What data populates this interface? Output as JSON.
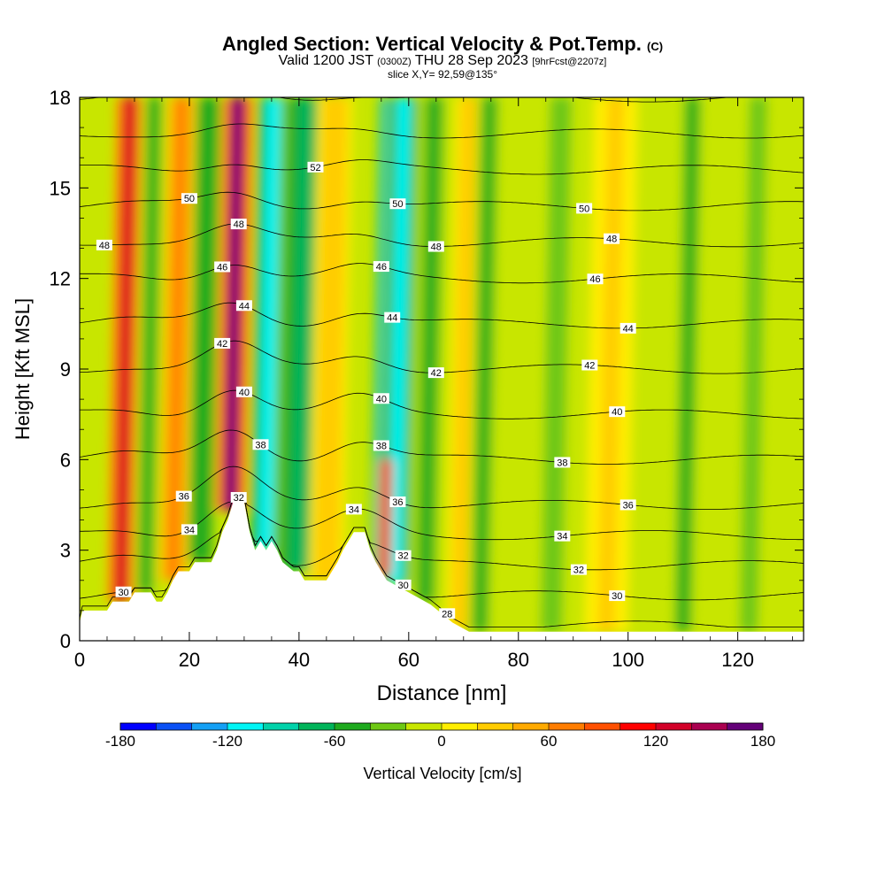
{
  "chart_data": {
    "type": "heatmap",
    "title": "Angled Section: Vertical Velocity & Pot.Temp.",
    "title_tag": "(C)",
    "subtitle": {
      "valid": "Valid 1200 JST",
      "utc": "(0300Z)",
      "date": "THU 28 Sep 2023",
      "fcst": "[9hrFcst@2207z]"
    },
    "slice": "slice X,Y= 92,59@135°",
    "xlabel": "Distance [nm]",
    "ylabel": "Height [Kft MSL]",
    "xlim": [
      0,
      132
    ],
    "ylim": [
      0,
      18
    ],
    "xticks": [
      "0",
      "20",
      "40",
      "60",
      "80",
      "100",
      "120"
    ],
    "yticks": [
      "0",
      "3",
      "6",
      "9",
      "12",
      "15",
      "18"
    ],
    "grid": false,
    "colorbar": {
      "label": "Vertical Velocity [cm/s]",
      "range": [
        -180,
        180
      ],
      "ticks": [
        "-180",
        "-120",
        "-60",
        "0",
        "60",
        "120",
        "180"
      ],
      "colors": [
        "#0000ff",
        "#0a50f5",
        "#14a0f5",
        "#00f5f5",
        "#00d2aa",
        "#00b45a",
        "#1eaa1e",
        "#6ec814",
        "#c8e600",
        "#ffee00",
        "#ffcc00",
        "#ffaa00",
        "#ff7d00",
        "#ff5000",
        "#ff0000",
        "#d20028",
        "#aa0050",
        "#640078"
      ]
    },
    "vertical_velocity_features": [
      {
        "x": 7.5,
        "z_top": 18,
        "peak": 130,
        "width": 1.6
      },
      {
        "x": 12,
        "z_top": 18,
        "peak": -55,
        "width": 1.4
      },
      {
        "x": 17,
        "z_top": 18,
        "peak": 60,
        "width": 1.6
      },
      {
        "x": 22,
        "z_top": 18,
        "peak": -60,
        "width": 1.5
      },
      {
        "x": 27.5,
        "z_top": 18,
        "peak": 165,
        "width": 1.8
      },
      {
        "x": 34,
        "z_top": 18,
        "peak": -120,
        "width": 1.8
      },
      {
        "x": 40,
        "z_top": 18,
        "peak": -65,
        "width": 3.0
      },
      {
        "x": 45,
        "z_top": 18,
        "peak": 30,
        "width": 2.0
      },
      {
        "x": 55,
        "z_top": 18,
        "peak": -150,
        "width": 1.2
      },
      {
        "x": 57.5,
        "z_top": 18,
        "peak": -105,
        "width": 2.0
      },
      {
        "x": 55.5,
        "z_top": 6,
        "peak": 120,
        "width": 0.8
      },
      {
        "x": 63,
        "z_top": 18,
        "peak": -45,
        "width": 1.8
      },
      {
        "x": 70,
        "z_top": 18,
        "peak": 30,
        "width": 2.0
      },
      {
        "x": 73,
        "z_top": 18,
        "peak": -45,
        "width": 1.5
      },
      {
        "x": 86,
        "z_top": 18,
        "peak": -40,
        "width": 1.8
      },
      {
        "x": 96,
        "z_top": 18,
        "peak": 25,
        "width": 2.5
      },
      {
        "x": 110,
        "z_top": 18,
        "peak": -55,
        "width": 1.5
      },
      {
        "x": 122,
        "z_top": 18,
        "peak": -35,
        "width": 1.5
      }
    ],
    "terrain": [
      [
        0,
        0.6
      ],
      [
        0.5,
        1.0
      ],
      [
        5,
        1.0
      ],
      [
        6,
        1.3
      ],
      [
        9,
        1.3
      ],
      [
        10,
        1.6
      ],
      [
        13,
        1.6
      ],
      [
        14,
        1.3
      ],
      [
        15,
        1.3
      ],
      [
        16,
        1.6
      ],
      [
        17,
        2.0
      ],
      [
        18,
        2.3
      ],
      [
        19,
        2.3
      ],
      [
        20,
        2.3
      ],
      [
        21,
        2.6
      ],
      [
        24,
        2.6
      ],
      [
        25,
        3.0
      ],
      [
        26,
        3.6
      ],
      [
        27,
        4.0
      ],
      [
        28,
        4.6
      ],
      [
        30,
        4.6
      ],
      [
        31,
        3.6
      ],
      [
        32,
        3.0
      ],
      [
        33,
        3.3
      ],
      [
        34,
        3.0
      ],
      [
        35,
        3.3
      ],
      [
        36,
        3.0
      ],
      [
        37,
        2.6
      ],
      [
        39,
        2.3
      ],
      [
        40,
        2.3
      ],
      [
        41,
        2.0
      ],
      [
        45,
        2.0
      ],
      [
        46,
        2.3
      ],
      [
        47,
        2.6
      ],
      [
        48,
        3.0
      ],
      [
        49,
        3.3
      ],
      [
        50,
        3.6
      ],
      [
        52,
        3.6
      ],
      [
        53,
        3.0
      ],
      [
        54,
        2.6
      ],
      [
        55,
        2.3
      ],
      [
        56,
        2.0
      ],
      [
        58,
        1.8
      ],
      [
        60,
        1.6
      ],
      [
        62,
        1.4
      ],
      [
        64,
        1.2
      ],
      [
        66,
        0.9
      ],
      [
        68,
        0.6
      ],
      [
        71,
        0.3
      ],
      [
        132,
        0.3
      ]
    ],
    "theta_contours": [
      {
        "value": 28,
        "base_z": 0.5,
        "labels": [
          {
            "text": "28",
            "x": 67
          }
        ]
      },
      {
        "value": 30,
        "base_z": 1.5,
        "labels": [
          {
            "text": "30",
            "x": 8
          },
          {
            "text": "30",
            "x": 59
          },
          {
            "text": "30",
            "x": 98
          }
        ]
      },
      {
        "value": 32,
        "base_z": 2.5,
        "labels": [
          {
            "text": "32",
            "x": 29
          },
          {
            "text": "32",
            "x": 59
          },
          {
            "text": "32",
            "x": 91
          }
        ]
      },
      {
        "value": 34,
        "base_z": 3.5,
        "labels": [
          {
            "text": "34",
            "x": 20
          },
          {
            "text": "34",
            "x": 50
          },
          {
            "text": "34",
            "x": 88
          }
        ]
      },
      {
        "value": 36,
        "base_z": 4.5,
        "labels": [
          {
            "text": "36",
            "x": 19
          },
          {
            "text": "36",
            "x": 58
          },
          {
            "text": "36",
            "x": 100
          }
        ]
      },
      {
        "value": 38,
        "base_z": 6.0,
        "labels": [
          {
            "text": "38",
            "x": 33
          },
          {
            "text": "38",
            "x": 55
          },
          {
            "text": "38",
            "x": 88
          }
        ]
      },
      {
        "value": 40,
        "base_z": 7.5,
        "labels": [
          {
            "text": "40",
            "x": 30
          },
          {
            "text": "40",
            "x": 55
          },
          {
            "text": "40",
            "x": 98
          }
        ]
      },
      {
        "value": 42,
        "base_z": 9.0,
        "labels": [
          {
            "text": "42",
            "x": 26
          },
          {
            "text": "42",
            "x": 65
          },
          {
            "text": "42",
            "x": 93
          }
        ]
      },
      {
        "value": 44,
        "base_z": 10.5,
        "labels": [
          {
            "text": "44",
            "x": 30
          },
          {
            "text": "44",
            "x": 57
          },
          {
            "text": "44",
            "x": 100
          }
        ]
      },
      {
        "value": 46,
        "base_z": 12.0,
        "labels": [
          {
            "text": "46",
            "x": 26
          },
          {
            "text": "46",
            "x": 55
          },
          {
            "text": "46",
            "x": 94
          }
        ]
      },
      {
        "value": 48,
        "base_z": 13.2,
        "labels": [
          {
            "text": "48",
            "x": 4.5
          },
          {
            "text": "48",
            "x": 29
          },
          {
            "text": "48",
            "x": 65
          },
          {
            "text": "48",
            "x": 97
          }
        ]
      },
      {
        "value": 50,
        "base_z": 14.4,
        "labels": [
          {
            "text": "50",
            "x": 20
          },
          {
            "text": "50",
            "x": 58
          },
          {
            "text": "50",
            "x": 92
          }
        ]
      },
      {
        "value": 52,
        "base_z": 15.6,
        "labels": [
          {
            "text": "52",
            "x": 43
          }
        ]
      },
      {
        "value": 54,
        "base_z": 16.8,
        "labels": []
      },
      {
        "value": 56,
        "base_z": 18.0,
        "labels": []
      }
    ]
  }
}
